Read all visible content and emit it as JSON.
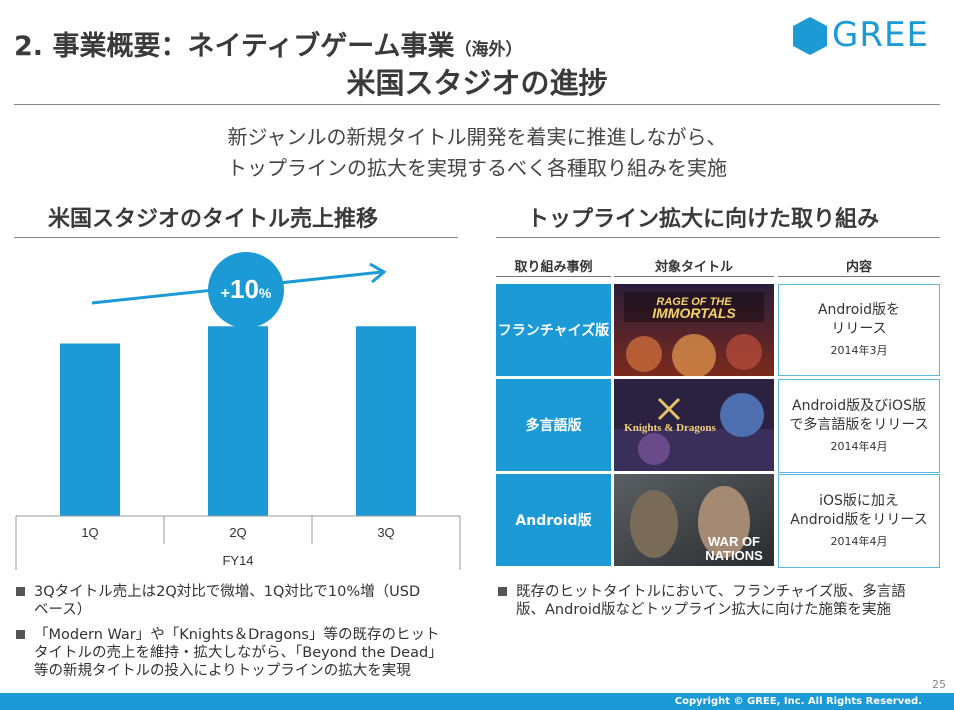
{
  "header": {
    "title_main": "2. 事業概要：ネイティブゲーム事業",
    "title_suffix": "（海外）",
    "logo_text": "GREE",
    "subtitle": "米国スタジオの進捗"
  },
  "intro": {
    "line1": "新ジャンルの新規タイトル開発を着実に推進しながら、",
    "line2": "トップラインの拡大を実現するべく各種取り組みを実施"
  },
  "left": {
    "section_title": "米国スタジオのタイトル売上推移",
    "growth_badge": {
      "prefix": "+",
      "number": "10",
      "unit": "%"
    },
    "bullets": [
      {
        "line1": "3Qタイトル売上は2Q対比で微増、1Q対比で10%増（USD",
        "line2": "ベース）"
      },
      {
        "line1": "「Modern War」や「Knights＆Dragons」等の既存のヒット",
        "line2": "タイトルの売上を維持・拡大しながら、「Beyond the Dead」",
        "line3": "等の新規タイトルの投入によりトップラインの拡大を実現"
      }
    ]
  },
  "chart_data": {
    "type": "bar",
    "categories": [
      "1Q",
      "2Q",
      "3Q"
    ],
    "group_label": "FY14",
    "series": [
      {
        "values": [
          100,
          110,
          110
        ]
      }
    ],
    "annotation": "+10%",
    "colors": {
      "bar": "#1b9ad6",
      "arrow": "#1b9ad6"
    },
    "grid": false
  },
  "right": {
    "section_title": "トップライン拡大に向けた取り組み",
    "columns": [
      "取り組み事例",
      "対象タイトル",
      "内容"
    ],
    "rows": [
      {
        "category": "フランチャイズ版",
        "title_art": "RAGE OF THE IMMORTALS",
        "content": [
          "Android版を",
          "リリース"
        ],
        "date": "2014年3月"
      },
      {
        "category": "多言語版",
        "title_art": "Knights & Dragons",
        "content": [
          "Android版及びiOS版",
          "で多言語版をリリース"
        ],
        "date": "2014年4月"
      },
      {
        "category": "Android版",
        "title_art": "WAR OF NATIONS",
        "content": [
          "iOS版に加え",
          "Android版をリリース"
        ],
        "date": "2014年4月"
      }
    ],
    "bullet": {
      "line1": "既存のヒットタイトルにおいて、フランチャイズ版、多言語",
      "line2": "版、Android版などトップライン拡大に向けた施策を実施"
    }
  },
  "footer": {
    "copyright": "Copyright © GREE, Inc. All Rights Reserved.",
    "page_number": "25"
  },
  "colors": {
    "accent": "#1b9ad6",
    "text": "#3a3a3a"
  }
}
